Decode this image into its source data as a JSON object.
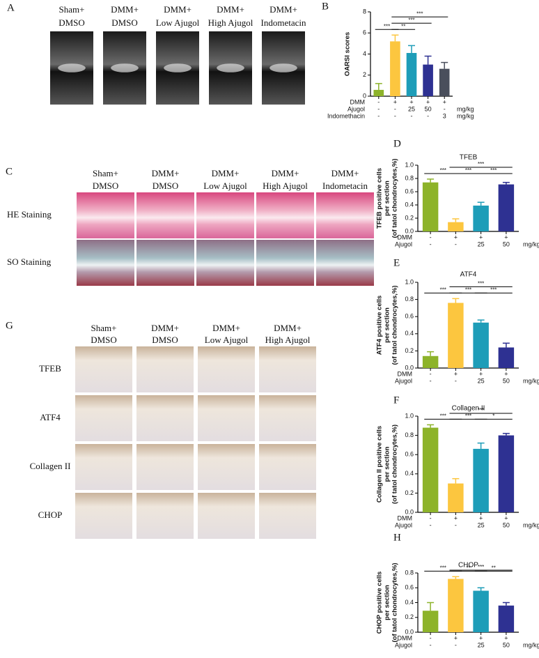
{
  "figure_panels": [
    {
      "panel": "A",
      "columns": [
        [
          "Sham+",
          "DMSO"
        ],
        [
          "DMM+",
          "DMSO"
        ],
        [
          "DMM+",
          "Low Ajugol"
        ],
        [
          "DMM+",
          "High Ajugol"
        ],
        [
          "DMM+",
          "Indometacin"
        ]
      ]
    },
    {
      "panel": "C",
      "columns": [
        [
          "Sham+",
          "DMSO"
        ],
        [
          "DMM+",
          "DMSO"
        ],
        [
          "DMM+",
          "Low Ajugol"
        ],
        [
          "DMM+",
          "High Ajugol"
        ],
        [
          "DMM+",
          "Indometacin"
        ]
      ],
      "rows": [
        "HE Staining",
        "SO Staining"
      ]
    },
    {
      "panel": "G",
      "columns": [
        [
          "Sham+",
          "DMSO"
        ],
        [
          "DMM+",
          "DMSO"
        ],
        [
          "DMM+",
          "Low Ajugol"
        ],
        [
          "DMM+",
          "High Ajugol"
        ]
      ],
      "rows": [
        "TFEB",
        "ATF4",
        "Collagen II",
        "CHOP"
      ]
    }
  ],
  "chart_data": [
    {
      "type": "bar",
      "panel": "B",
      "ylabel": [
        "OARSI scores"
      ],
      "values": [
        0.6,
        5.2,
        4.1,
        3.0,
        2.6
      ],
      "errors": [
        0.6,
        0.6,
        0.7,
        0.8,
        0.6
      ],
      "colors": [
        "#8db32a",
        "#fcc63f",
        "#1e9db8",
        "#2e3192",
        "#4a4f5c"
      ],
      "ylim": [
        0,
        8
      ],
      "yticks": [
        0,
        2,
        4,
        6,
        8
      ],
      "treatment_rows": [
        {
          "label": "DMM",
          "cells": [
            "-",
            "+",
            "+",
            "+",
            "+"
          ]
        },
        {
          "label": "Ajugol",
          "cells": [
            "-",
            "-",
            "25",
            "50",
            "-"
          ],
          "unit": "mg/kg"
        },
        {
          "label": "Indomethacin",
          "cells": [
            "-",
            "-",
            "-",
            "-",
            "3"
          ],
          "unit": "mg/kg"
        }
      ],
      "significance": [
        {
          "between": [
            0,
            1
          ],
          "label": "***"
        },
        {
          "between": [
            1,
            2
          ],
          "label": "**"
        },
        {
          "between": [
            1,
            3
          ],
          "label": "***"
        },
        {
          "between": [
            1,
            4
          ],
          "label": "***"
        }
      ]
    },
    {
      "type": "bar",
      "panel": "D",
      "title": "TFEB",
      "ylabel": [
        "TFEB positive cells",
        "per section",
        "(of tatol chondrocytes,%)"
      ],
      "values": [
        0.74,
        0.14,
        0.39,
        0.71
      ],
      "errors": [
        0.05,
        0.05,
        0.05,
        0.03
      ],
      "colors": [
        "#8db32a",
        "#fcc63f",
        "#1e9db8",
        "#2e3192"
      ],
      "ylim": [
        0,
        1
      ],
      "yticks": [
        {
          "value": 0,
          "label": "0.0"
        },
        0.2,
        0.4,
        0.6,
        0.8,
        {
          "value": 1,
          "label": "1.0"
        }
      ],
      "treatment_rows": [
        {
          "label": "DMM",
          "cells": [
            "-",
            "+",
            "+",
            "+"
          ]
        },
        {
          "label": "Ajugol",
          "cells": [
            "-",
            "-",
            "25",
            "50"
          ],
          "unit": "mg/kg"
        }
      ],
      "significance": [
        {
          "between": [
            0,
            1
          ],
          "label": "***"
        },
        {
          "between": [
            1,
            2
          ],
          "label": "***"
        },
        {
          "between": [
            2,
            3
          ],
          "label": "***"
        },
        {
          "between": [
            1,
            3
          ],
          "label": "***"
        }
      ]
    },
    {
      "type": "bar",
      "panel": "E",
      "title": "ATF4",
      "ylabel": [
        "ATF4 positive cells",
        "per section",
        "(of tatol chondrocytes,%)"
      ],
      "values": [
        0.14,
        0.76,
        0.53,
        0.24
      ],
      "errors": [
        0.05,
        0.05,
        0.03,
        0.05
      ],
      "colors": [
        "#8db32a",
        "#fcc63f",
        "#1e9db8",
        "#2e3192"
      ],
      "ylim": [
        0,
        1
      ],
      "yticks": [
        {
          "value": 0,
          "label": "0.0"
        },
        0.2,
        0.4,
        0.6,
        0.8,
        {
          "value": 1,
          "label": "1.0"
        }
      ],
      "treatment_rows": [
        {
          "label": "DMM",
          "cells": [
            "-",
            "+",
            "+",
            "+"
          ]
        },
        {
          "label": "Ajugol",
          "cells": [
            "-",
            "-",
            "25",
            "50"
          ],
          "unit": "mg/kg"
        }
      ],
      "significance": [
        {
          "between": [
            0,
            1
          ],
          "label": "***"
        },
        {
          "between": [
            1,
            2
          ],
          "label": "***"
        },
        {
          "between": [
            2,
            3
          ],
          "label": "***"
        },
        {
          "between": [
            1,
            3
          ],
          "label": "***"
        }
      ]
    },
    {
      "type": "bar",
      "panel": "F",
      "title": "Collagen II",
      "ylabel": [
        "Collagen II positive cells",
        "per section",
        "(of tatol chondrocytes,%)"
      ],
      "values": [
        0.88,
        0.3,
        0.66,
        0.8
      ],
      "errors": [
        0.03,
        0.05,
        0.06,
        0.02
      ],
      "colors": [
        "#8db32a",
        "#fcc63f",
        "#1e9db8",
        "#2e3192"
      ],
      "ylim": [
        0,
        1
      ],
      "yticks": [
        {
          "value": 0,
          "label": "0.0"
        },
        0.2,
        0.4,
        0.6,
        0.8,
        {
          "value": 1,
          "label": "1.0"
        }
      ],
      "treatment_rows": [
        {
          "label": "DMM",
          "cells": [
            "-",
            "+",
            "+",
            "+"
          ]
        },
        {
          "label": "Ajugol",
          "cells": [
            "-",
            "-",
            "25",
            "50"
          ],
          "unit": "mg/kg"
        }
      ],
      "significance": [
        {
          "between": [
            0,
            1
          ],
          "label": "***"
        },
        {
          "between": [
            1,
            2
          ],
          "label": "***"
        },
        {
          "between": [
            2,
            3
          ],
          "label": "*"
        },
        {
          "between": [
            1,
            3
          ],
          "label": "***"
        }
      ]
    },
    {
      "type": "bar",
      "panel": "H",
      "title": "CHOP",
      "ylabel": [
        "CHOP positive cells",
        "per section",
        "(of tatol chondrocytes,%)"
      ],
      "values": [
        0.29,
        0.72,
        0.56,
        0.36
      ],
      "errors": [
        0.11,
        0.03,
        0.04,
        0.04
      ],
      "colors": [
        "#8db32a",
        "#fcc63f",
        "#1e9db8",
        "#2e3192"
      ],
      "ylim": [
        0,
        0.8
      ],
      "yticks": [
        {
          "value": 0,
          "label": "0.0"
        },
        0.2,
        0.4,
        0.6,
        0.8
      ],
      "treatment_rows": [
        {
          "label": "DMM",
          "cells": [
            "-",
            "+",
            "+",
            "+"
          ]
        },
        {
          "label": "Ajugol",
          "cells": [
            "-",
            "-",
            "25",
            "50"
          ],
          "unit": "mg/kg"
        }
      ],
      "significance": [
        {
          "between": [
            0,
            1
          ],
          "label": "***"
        },
        {
          "between": [
            1,
            2
          ],
          "label": "**"
        },
        {
          "between": [
            2,
            3
          ],
          "label": "**"
        },
        {
          "between": [
            1,
            3
          ],
          "label": "***"
        }
      ]
    }
  ]
}
